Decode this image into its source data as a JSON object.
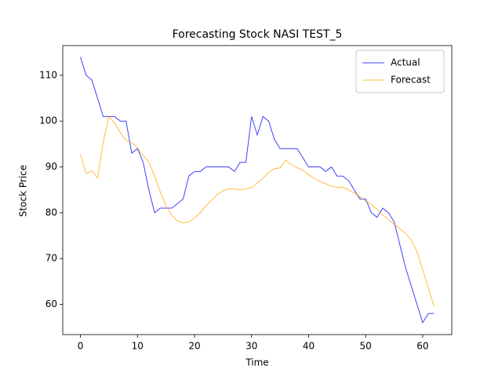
{
  "chart_data": {
    "type": "line",
    "title": "Forecasting Stock NASI TEST_5",
    "x_label": "Time",
    "y_label": "Stock Price",
    "x": [
      0,
      1,
      2,
      3,
      4,
      5,
      6,
      7,
      8,
      9,
      10,
      11,
      12,
      13,
      14,
      15,
      16,
      17,
      18,
      19,
      20,
      21,
      22,
      23,
      24,
      25,
      26,
      27,
      28,
      29,
      30,
      31,
      32,
      33,
      34,
      35,
      36,
      37,
      38,
      39,
      40,
      41,
      42,
      43,
      44,
      45,
      46,
      47,
      48,
      49,
      50,
      51,
      52,
      53,
      54,
      55,
      56,
      57,
      58,
      59,
      60,
      61,
      62
    ],
    "series": [
      {
        "name": "Actual",
        "color": "#0000ff",
        "values": [
          114,
          110,
          109,
          105,
          101,
          101,
          101,
          100,
          100,
          93,
          94,
          91,
          85,
          80,
          81,
          81,
          81,
          82,
          83,
          88,
          89,
          89,
          90,
          90,
          90,
          90,
          90,
          89,
          91,
          91,
          101,
          97,
          101,
          100,
          96,
          94,
          94,
          94,
          94,
          92,
          90,
          90,
          90,
          89,
          90,
          88,
          88,
          87,
          85,
          83,
          83,
          80,
          79,
          81,
          80,
          78,
          73,
          68,
          64,
          60,
          56,
          58,
          58
        ]
      },
      {
        "name": "Forecast",
        "color": "#ffa500",
        "values": [
          92.8,
          88.5,
          89.2,
          87.6,
          95.5,
          101,
          99.5,
          97.5,
          95.8,
          95.3,
          94.2,
          92.5,
          91,
          88,
          84.5,
          81.5,
          79.5,
          78.2,
          77.8,
          78,
          78.8,
          80,
          81.5,
          82.8,
          84,
          84.8,
          85.2,
          85.2,
          85,
          85.2,
          85.5,
          86.5,
          87.5,
          88.8,
          89.6,
          89.8,
          91.5,
          90.5,
          89.8,
          89.3,
          88.3,
          87.5,
          86.8,
          86.3,
          85.8,
          85.6,
          85.5,
          85,
          84.3,
          83.5,
          82.5,
          81.8,
          80.8,
          79.5,
          78.5,
          77.5,
          76.5,
          75.5,
          74,
          71.5,
          67.5,
          63.5,
          59.5
        ]
      }
    ],
    "xlim": [
      -3.1,
      65.1
    ],
    "ylim": [
      53.4,
      116.5
    ],
    "xticks": [
      0,
      10,
      20,
      30,
      40,
      50,
      60
    ],
    "yticks": [
      60,
      70,
      80,
      90,
      100,
      110
    ],
    "legend": "upper right"
  }
}
